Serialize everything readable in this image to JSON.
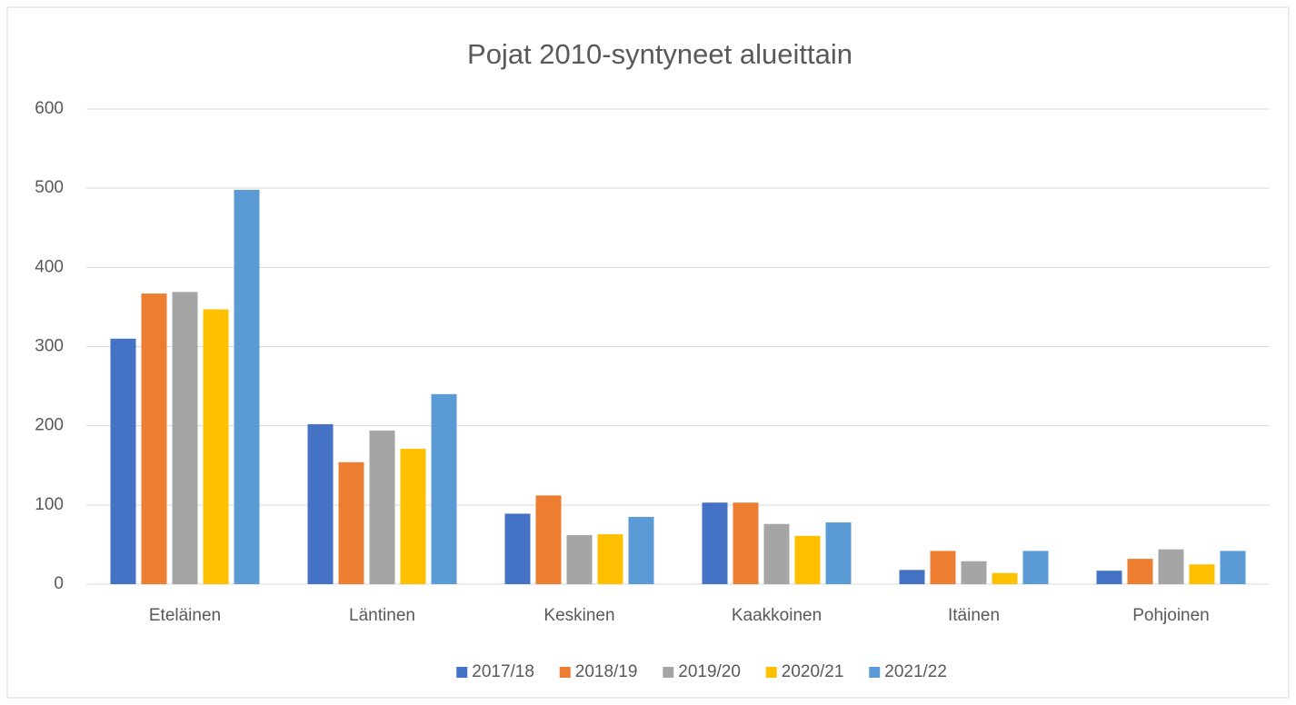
{
  "chart_data": {
    "type": "bar",
    "title": "Pojat 2010-syntyneet alueittain",
    "categories": [
      "Eteläinen",
      "Läntinen",
      "Keskinen",
      "Kaakkoinen",
      "Itäinen",
      "Pohjoinen"
    ],
    "series": [
      {
        "name": "2017/18",
        "color": "#4472c4",
        "values": [
          310,
          202,
          89,
          103,
          18,
          17
        ]
      },
      {
        "name": "2018/19",
        "color": "#ed7d31",
        "values": [
          367,
          154,
          112,
          103,
          42,
          32
        ]
      },
      {
        "name": "2019/20",
        "color": "#a5a5a5",
        "values": [
          369,
          194,
          62,
          76,
          29,
          44
        ]
      },
      {
        "name": "2020/21",
        "color": "#ffc000",
        "values": [
          347,
          171,
          63,
          61,
          14,
          25
        ]
      },
      {
        "name": "2021/22",
        "color": "#5b9bd5",
        "values": [
          498,
          240,
          85,
          78,
          42,
          42
        ]
      }
    ],
    "ylim": [
      0,
      600
    ],
    "yticks": [
      0,
      100,
      200,
      300,
      400,
      500,
      600
    ],
    "grid": true,
    "legend": "bottom"
  }
}
